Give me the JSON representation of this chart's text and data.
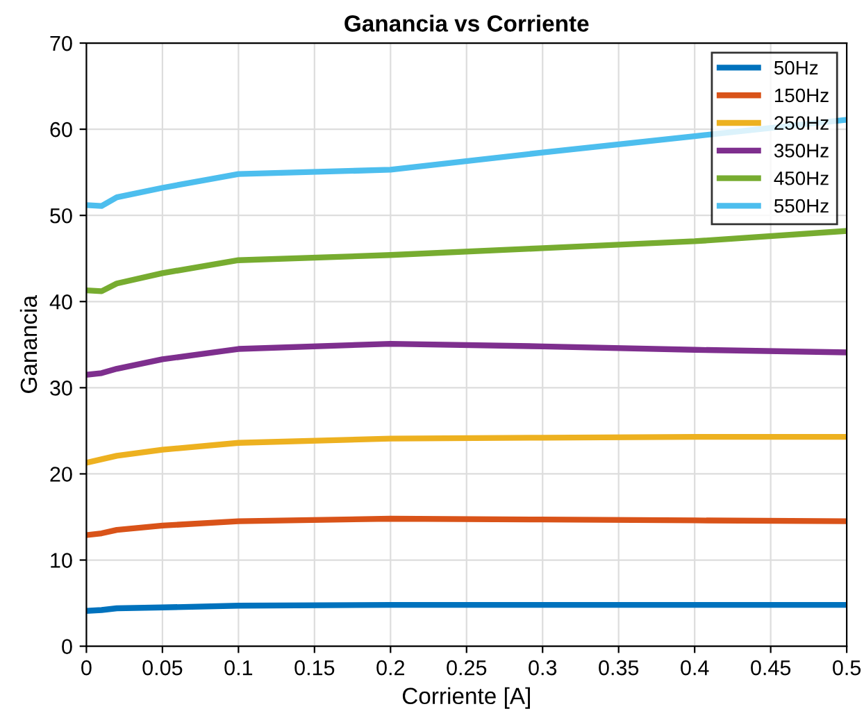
{
  "chart_data": {
    "type": "line",
    "title": "Ganancia vs Corriente",
    "xlabel": "Corriente [A]",
    "ylabel": "Ganancia",
    "x": [
      0,
      0.01,
      0.02,
      0.05,
      0.1,
      0.2,
      0.3,
      0.4,
      0.5
    ],
    "series": [
      {
        "name": "50Hz",
        "color": "#0072bd",
        "values": [
          4.1,
          4.2,
          4.4,
          4.5,
          4.7,
          4.8,
          4.8,
          4.8,
          4.8
        ]
      },
      {
        "name": "150Hz",
        "color": "#d95319",
        "values": [
          12.9,
          13.1,
          13.5,
          14.0,
          14.5,
          14.8,
          14.7,
          14.6,
          14.5
        ]
      },
      {
        "name": "250Hz",
        "color": "#edb120",
        "values": [
          21.3,
          21.7,
          22.1,
          22.8,
          23.6,
          24.1,
          24.2,
          24.3,
          24.3
        ]
      },
      {
        "name": "350Hz",
        "color": "#7e2f8e",
        "values": [
          31.5,
          31.7,
          32.2,
          33.3,
          34.5,
          35.1,
          34.8,
          34.4,
          34.1
        ]
      },
      {
        "name": "450Hz",
        "color": "#77ac30",
        "values": [
          41.3,
          41.2,
          42.1,
          43.3,
          44.8,
          45.4,
          46.2,
          47.0,
          48.2
        ]
      },
      {
        "name": "550Hz",
        "color": "#4dbeee",
        "values": [
          51.2,
          51.1,
          52.1,
          53.2,
          54.8,
          55.3,
          57.3,
          59.2,
          61.1
        ]
      }
    ],
    "xlim": [
      0,
      0.5
    ],
    "xticks": [
      0,
      0.05,
      0.1,
      0.15,
      0.2,
      0.25,
      0.3,
      0.35,
      0.4,
      0.45,
      0.5
    ],
    "ylim": [
      0,
      70
    ],
    "yticks": [
      0,
      10,
      20,
      30,
      40,
      50,
      60,
      70
    ],
    "grid": true,
    "legend": "top right",
    "marker": "none",
    "line_style": "solid"
  }
}
